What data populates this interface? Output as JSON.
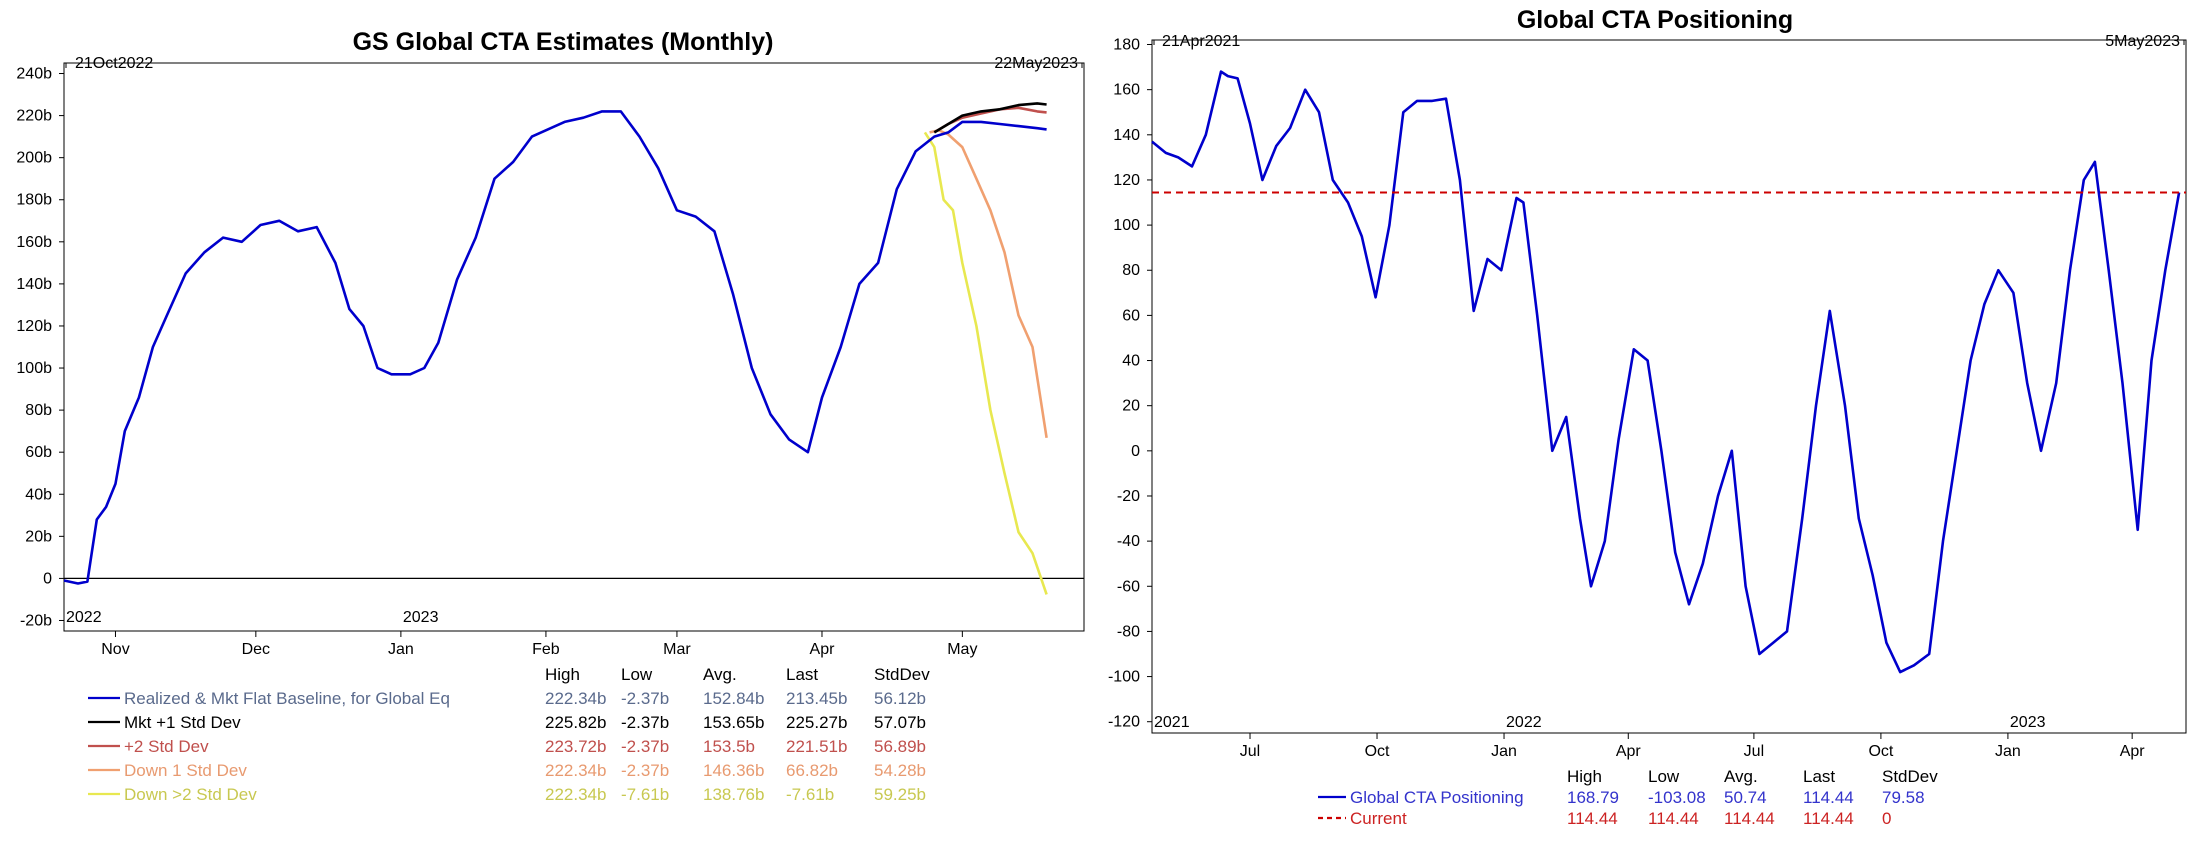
{
  "charts": [
    {
      "title": "GS Global CTA Estimates (Monthly)",
      "start_label": "21Oct2022",
      "end_label": "22May2023",
      "year_labels": [
        {
          "label": "2022",
          "x": "2022-10-21"
        },
        {
          "label": "2023",
          "x": "2023-01-01"
        }
      ],
      "stats_headers": [
        "High",
        "Low",
        "Avg.",
        "Last",
        "StdDev"
      ],
      "legend": [
        {
          "name": "Realized & Mkt Flat Baseline, for Global Eq",
          "color": "#0000cc",
          "text_color": "#5a6a8c",
          "stats": [
            "222.34b",
            "-2.37b",
            "152.84b",
            "213.45b",
            "56.12b"
          ]
        },
        {
          "name": "Mkt +1 Std Dev",
          "color": "#000000",
          "text_color": "#000000",
          "stats": [
            "225.82b",
            "-2.37b",
            "153.65b",
            "225.27b",
            "57.07b"
          ]
        },
        {
          "name": "+2 Std Dev",
          "color": "#c0504d",
          "text_color": "#c0504d",
          "stats": [
            "223.72b",
            "-2.37b",
            "153.5b",
            "221.51b",
            "56.89b"
          ]
        },
        {
          "name": "Down 1 Std Dev",
          "color": "#f0a070",
          "text_color": "#e89a70",
          "stats": [
            "222.34b",
            "-2.37b",
            "146.36b",
            "66.82b",
            "54.28b"
          ]
        },
        {
          "name": "Down >2 Std Dev",
          "color": "#e8e850",
          "text_color": "#c8c850",
          "stats": [
            "222.34b",
            "-7.61b",
            "138.76b",
            "-7.61b",
            "59.25b"
          ]
        }
      ]
    },
    {
      "title": "Global CTA Positioning",
      "start_label": "21Apr2021",
      "end_label": "5May2023",
      "year_labels": [
        {
          "label": "2021",
          "x": "2021-04-21"
        },
        {
          "label": "2022",
          "x": "2022-01-01"
        },
        {
          "label": "2023",
          "x": "2023-01-01"
        }
      ],
      "stats_headers": [
        "High",
        "Low",
        "Avg.",
        "Last",
        "StdDev"
      ],
      "legend": [
        {
          "name": "Global CTA Positioning",
          "color": "#0000cc",
          "text_color": "#3333cc",
          "dashed": false,
          "stats": [
            "168.79",
            "-103.08",
            "50.74",
            "114.44",
            "79.58"
          ]
        },
        {
          "name": "Current",
          "color": "#cc0000",
          "text_color": "#cc2222",
          "dashed": true,
          "stats": [
            "114.44",
            "114.44",
            "114.44",
            "114.44",
            "0"
          ]
        }
      ]
    }
  ],
  "chart_data": [
    {
      "type": "line",
      "title": "GS Global CTA Estimates (Monthly)",
      "y_unit_suffix": "b",
      "ylim": [
        -25,
        245
      ],
      "yticks": [
        -20,
        0,
        20,
        40,
        60,
        80,
        100,
        120,
        140,
        160,
        180,
        200,
        220,
        240
      ],
      "ytick_labels": [
        "-20b",
        "0",
        "20b",
        "40b",
        "60b",
        "80b",
        "100b",
        "120b",
        "140b",
        "160b",
        "180b",
        "200b",
        "220b",
        "240b"
      ],
      "xlim": [
        "2022-10-21",
        "2023-05-27"
      ],
      "xticks": [
        {
          "label": "Nov",
          "date": "2022-11-01"
        },
        {
          "label": "Dec",
          "date": "2022-12-01"
        },
        {
          "label": "Jan",
          "date": "2023-01-01"
        },
        {
          "label": "Feb",
          "date": "2023-02-01"
        },
        {
          "label": "Mar",
          "date": "2023-03-01"
        },
        {
          "label": "Apr",
          "date": "2023-04-01"
        },
        {
          "label": "May",
          "date": "2023-05-01"
        }
      ],
      "grid": false,
      "zero_line": true,
      "series": [
        {
          "name": "Realized & Mkt Flat Baseline, for Global Eq",
          "color": "#0000cc",
          "x": [
            "2022-10-21",
            "2022-10-24",
            "2022-10-26",
            "2022-10-28",
            "2022-10-30",
            "2022-11-01",
            "2022-11-03",
            "2022-11-06",
            "2022-11-09",
            "2022-11-12",
            "2022-11-16",
            "2022-11-20",
            "2022-11-24",
            "2022-11-28",
            "2022-12-02",
            "2022-12-06",
            "2022-12-10",
            "2022-12-14",
            "2022-12-18",
            "2022-12-21",
            "2022-12-24",
            "2022-12-27",
            "2022-12-30",
            "2023-01-03",
            "2023-01-06",
            "2023-01-09",
            "2023-01-13",
            "2023-01-17",
            "2023-01-21",
            "2023-01-25",
            "2023-01-29",
            "2023-02-01",
            "2023-02-05",
            "2023-02-09",
            "2023-02-13",
            "2023-02-17",
            "2023-02-21",
            "2023-02-25",
            "2023-03-01",
            "2023-03-05",
            "2023-03-09",
            "2023-03-13",
            "2023-03-17",
            "2023-03-21",
            "2023-03-25",
            "2023-03-29",
            "2023-04-01",
            "2023-04-05",
            "2023-04-09",
            "2023-04-13",
            "2023-04-17",
            "2023-04-21",
            "2023-04-25",
            "2023-04-28",
            "2023-05-01",
            "2023-05-05",
            "2023-05-09",
            "2023-05-13",
            "2023-05-17",
            "2023-05-19"
          ],
          "y": [
            -1,
            -2.4,
            -1.5,
            28,
            34,
            45,
            70,
            86,
            110,
            125,
            145,
            155,
            162,
            160,
            168,
            170,
            165,
            167,
            150,
            128,
            120,
            100,
            97,
            97,
            100,
            112,
            142,
            162,
            190,
            198,
            210,
            213,
            217,
            219,
            222,
            222,
            210,
            195,
            175,
            172,
            165,
            135,
            100,
            78,
            66,
            60,
            86,
            110,
            140,
            150,
            185,
            203,
            210,
            212,
            217,
            217,
            216,
            215,
            214,
            213.45
          ]
        },
        {
          "name": "Mkt +1 Std Dev",
          "color": "#000000",
          "x": [
            "2023-04-25",
            "2023-04-28",
            "2023-05-01",
            "2023-05-05",
            "2023-05-09",
            "2023-05-13",
            "2023-05-17",
            "2023-05-19"
          ],
          "y": [
            212,
            216,
            220,
            222,
            223,
            225,
            225.8,
            225.27
          ]
        },
        {
          "name": "+2 Std Dev",
          "color": "#c0504d",
          "x": [
            "2023-04-25",
            "2023-04-28",
            "2023-05-01",
            "2023-05-05",
            "2023-05-09",
            "2023-05-13",
            "2023-05-17",
            "2023-05-19"
          ],
          "y": [
            212,
            216,
            219,
            221,
            223,
            223.7,
            222,
            221.51
          ]
        },
        {
          "name": "Down 1 Std Dev",
          "color": "#f0a070",
          "x": [
            "2023-04-24",
            "2023-04-26",
            "2023-04-28",
            "2023-05-01",
            "2023-05-04",
            "2023-05-07",
            "2023-05-10",
            "2023-05-13",
            "2023-05-16",
            "2023-05-19"
          ],
          "y": [
            212,
            213,
            211,
            205,
            190,
            175,
            155,
            125,
            110,
            66.82
          ]
        },
        {
          "name": "Down >2 Std Dev",
          "color": "#e8e850",
          "x": [
            "2023-04-23",
            "2023-04-25",
            "2023-04-27",
            "2023-04-29",
            "2023-05-01",
            "2023-05-04",
            "2023-05-07",
            "2023-05-10",
            "2023-05-13",
            "2023-05-16",
            "2023-05-19"
          ],
          "y": [
            212,
            205,
            180,
            175,
            150,
            120,
            80,
            50,
            22,
            12,
            -7.61
          ]
        }
      ]
    },
    {
      "type": "line",
      "title": "Global CTA Positioning",
      "ylim": [
        -125,
        182
      ],
      "yticks": [
        -120,
        -100,
        -80,
        -60,
        -40,
        -20,
        0,
        20,
        40,
        60,
        80,
        100,
        120,
        140,
        160,
        180
      ],
      "ytick_labels": [
        "-120",
        "-100",
        "-80",
        "-60",
        "-40",
        "-20",
        "0",
        "20",
        "40",
        "60",
        "80",
        "100",
        "120",
        "140",
        "160",
        "180"
      ],
      "xlim": [
        "2021-04-21",
        "2023-05-10"
      ],
      "xticks": [
        {
          "label": "Jul",
          "date": "2021-07-01"
        },
        {
          "label": "Oct",
          "date": "2021-10-01"
        },
        {
          "label": "Jan",
          "date": "2022-01-01"
        },
        {
          "label": "Apr",
          "date": "2022-04-01"
        },
        {
          "label": "Jul",
          "date": "2022-07-01"
        },
        {
          "label": "Oct",
          "date": "2022-10-01"
        },
        {
          "label": "Jan",
          "date": "2023-01-01"
        },
        {
          "label": "Apr",
          "date": "2023-04-01"
        }
      ],
      "grid": false,
      "series": [
        {
          "name": "Global CTA Positioning",
          "color": "#0000cc",
          "x": [
            "2021-04-21",
            "2021-05-01",
            "2021-05-10",
            "2021-05-20",
            "2021-05-30",
            "2021-06-10",
            "2021-06-15",
            "2021-06-22",
            "2021-07-01",
            "2021-07-10",
            "2021-07-20",
            "2021-07-30",
            "2021-08-10",
            "2021-08-20",
            "2021-08-30",
            "2021-09-10",
            "2021-09-20",
            "2021-09-30",
            "2021-10-10",
            "2021-10-20",
            "2021-10-30",
            "2021-11-10",
            "2021-11-20",
            "2021-11-30",
            "2021-12-10",
            "2021-12-20",
            "2021-12-30",
            "2022-01-10",
            "2022-01-15",
            "2022-01-25",
            "2022-02-05",
            "2022-02-15",
            "2022-02-25",
            "2022-03-05",
            "2022-03-15",
            "2022-03-25",
            "2022-04-05",
            "2022-04-15",
            "2022-04-25",
            "2022-05-05",
            "2022-05-15",
            "2022-05-25",
            "2022-06-05",
            "2022-06-15",
            "2022-06-25",
            "2022-07-05",
            "2022-07-15",
            "2022-07-25",
            "2022-08-05",
            "2022-08-15",
            "2022-08-25",
            "2022-09-05",
            "2022-09-15",
            "2022-09-25",
            "2022-10-05",
            "2022-10-15",
            "2022-10-25",
            "2022-11-05",
            "2022-11-15",
            "2022-11-25",
            "2022-12-05",
            "2022-12-15",
            "2022-12-25",
            "2023-01-05",
            "2023-01-15",
            "2023-01-25",
            "2023-02-05",
            "2023-02-15",
            "2023-02-25",
            "2023-03-05",
            "2023-03-15",
            "2023-03-25",
            "2023-04-05",
            "2023-04-15",
            "2023-04-25",
            "2023-05-05"
          ],
          "y": [
            137,
            132,
            130,
            126,
            140,
            168,
            166,
            165,
            145,
            120,
            135,
            143,
            160,
            150,
            120,
            110,
            95,
            68,
            100,
            150,
            155,
            155,
            156,
            120,
            62,
            85,
            80,
            112,
            110,
            60,
            0,
            15,
            -30,
            -60,
            -40,
            5,
            45,
            40,
            0,
            -45,
            -68,
            -50,
            -20,
            0,
            -60,
            -90,
            -85,
            -80,
            -30,
            20,
            62,
            20,
            -30,
            -55,
            -85,
            -98,
            -95,
            -90,
            -40,
            0,
            40,
            65,
            80,
            70,
            30,
            0,
            30,
            80,
            120,
            128,
            80,
            30,
            -35,
            40,
            80,
            114.44
          ]
        },
        {
          "name": "Current",
          "color": "#cc0000",
          "dashed": true,
          "x": [
            "2021-04-21",
            "2023-05-10"
          ],
          "y": [
            114.44,
            114.44
          ]
        }
      ]
    }
  ]
}
